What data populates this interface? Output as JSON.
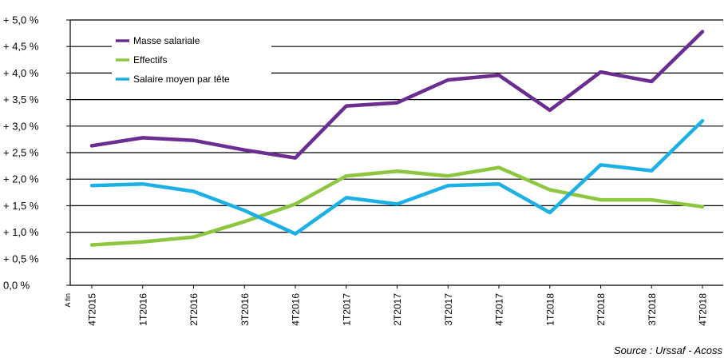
{
  "chart_data": {
    "type": "line",
    "x_prefix": "A fin",
    "categories": [
      "4T2015",
      "1T2016",
      "2T2016",
      "3T2016",
      "4T2016",
      "1T2017",
      "2T2017",
      "3T2017",
      "4T2017",
      "1T2018",
      "2T2018",
      "3T2018",
      "4T2018"
    ],
    "series": [
      {
        "name": "Masse salariale",
        "color": "#6B2D91",
        "values": [
          2.63,
          2.78,
          2.73,
          2.55,
          2.4,
          3.38,
          3.44,
          3.87,
          3.96,
          3.3,
          4.02,
          3.84,
          4.78
        ]
      },
      {
        "name": "Effectifs",
        "color": "#8DC63F",
        "values": [
          0.76,
          0.82,
          0.91,
          1.2,
          1.53,
          2.06,
          2.15,
          2.06,
          2.22,
          1.8,
          1.61,
          1.61,
          1.48
        ]
      },
      {
        "name": "Salaire moyen par tête",
        "color": "#1BB1E6",
        "values": [
          1.88,
          1.91,
          1.77,
          1.41,
          0.97,
          1.65,
          1.53,
          1.88,
          1.91,
          1.37,
          2.27,
          2.16,
          3.1
        ]
      }
    ],
    "yticks": [
      "0,0 %",
      "+ 0,5 %",
      "+ 1,0 %",
      "+ 1,5 %",
      "+ 2,0 %",
      "+ 2,5 %",
      "+ 3,0 %",
      "+ 3,5 %",
      "+ 4,0 %",
      "+ 4,5 %",
      "+ 5,0 %"
    ],
    "ylim": [
      0,
      5
    ],
    "grid": true,
    "legend_position": "top-left",
    "source": "Source : Urssaf - Acoss"
  }
}
